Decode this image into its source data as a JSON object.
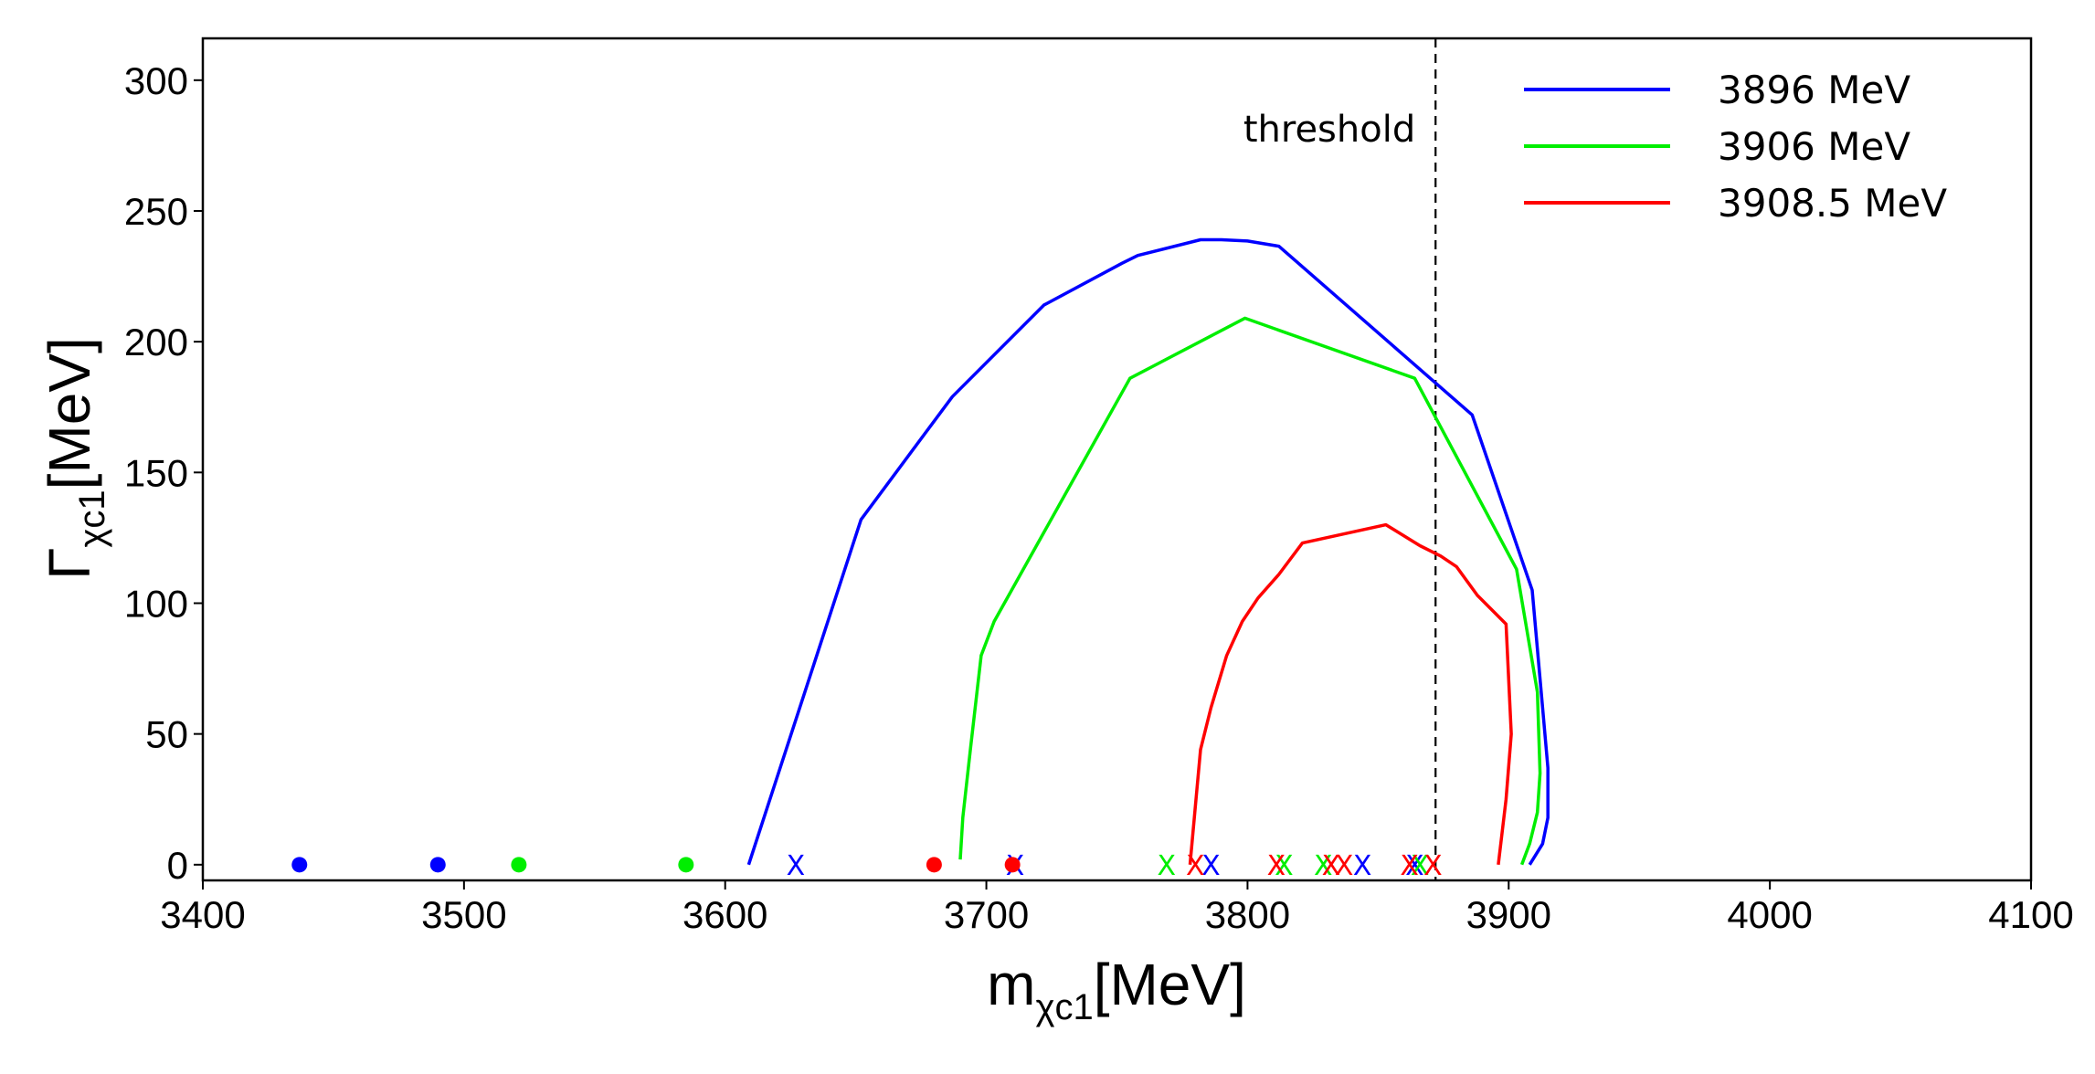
{
  "chart_data": {
    "type": "line",
    "title": "",
    "xlabel": {
      "main": "m",
      "sub": "χc1",
      "unit": "[MeV]"
    },
    "ylabel": {
      "main": "Γ",
      "sub": "χc1",
      "unit": "[MeV]"
    },
    "xlim": [
      3400,
      4100
    ],
    "ylim": [
      -6,
      316
    ],
    "xticks": [
      3400,
      3500,
      3600,
      3700,
      3800,
      3900,
      4000,
      4100
    ],
    "yticks": [
      0,
      50,
      100,
      150,
      200,
      250,
      300
    ],
    "xtick_labels": [
      "3400",
      "3500",
      "3600",
      "3700",
      "3800",
      "3900",
      "4000",
      "4100"
    ],
    "ytick_labels": [
      "0",
      "50",
      "100",
      "150",
      "200",
      "250",
      "300"
    ],
    "legend_position": "top-right",
    "threshold": {
      "x": 3872,
      "label": "threshold"
    },
    "series": [
      {
        "name": "3896 MeV",
        "color": "#0000ff",
        "x": [
          3609,
          3652,
          3687,
          3722,
          3752,
          3758,
          3782,
          3790,
          3800,
          3812,
          3886,
          3909,
          3913,
          3915,
          3915,
          3913,
          3908
        ],
        "y": [
          0,
          132,
          179,
          214,
          230,
          233,
          239,
          239,
          238.5,
          236.5,
          172,
          105,
          60,
          37,
          18,
          8,
          0
        ],
        "markers_x": [
          3627,
          3711,
          3786,
          3844,
          3864
        ],
        "dots_x": [
          3437,
          3490
        ]
      },
      {
        "name": "3906 MeV",
        "color": "#00ee00",
        "x": [
          3690,
          3691,
          3694,
          3698,
          3703,
          3755,
          3799,
          3864,
          3903,
          3911,
          3912,
          3911,
          3908,
          3905
        ],
        "y": [
          2,
          18,
          45,
          80,
          93,
          186,
          209,
          186,
          113,
          66,
          35,
          20,
          8,
          0
        ],
        "markers_x": [
          3769,
          3814,
          3829,
          3866
        ],
        "dots_x": [
          3521,
          3585
        ]
      },
      {
        "name": "3908.5 MeV",
        "color": "#ff0000",
        "x": [
          3778,
          3782,
          3786,
          3792,
          3798,
          3804,
          3812,
          3821,
          3853,
          3866,
          3874,
          3880,
          3888,
          3899,
          3901,
          3899,
          3896
        ],
        "y": [
          0,
          44,
          60,
          80,
          93,
          102,
          111,
          123,
          130,
          122,
          118,
          114,
          103,
          92,
          50,
          25,
          0
        ],
        "markers_x": [
          3780,
          3811,
          3832,
          3837,
          3862,
          3871
        ],
        "dots_x": [
          3680,
          3710
        ]
      }
    ]
  }
}
